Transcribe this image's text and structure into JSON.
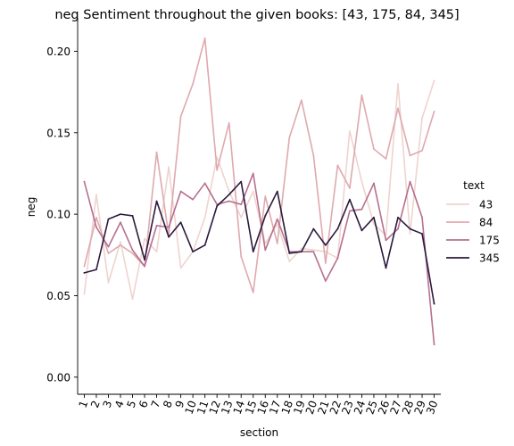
{
  "chart_data": {
    "type": "line",
    "title": "neg Sentiment throughout the given books: [43, 175, 84, 345]",
    "xlabel": "section",
    "ylabel": "neg",
    "x": [
      1,
      2,
      3,
      4,
      5,
      6,
      7,
      8,
      9,
      10,
      11,
      12,
      13,
      14,
      15,
      16,
      17,
      18,
      19,
      20,
      21,
      22,
      23,
      24,
      25,
      26,
      27,
      28,
      29,
      30
    ],
    "x_tick_labels": [
      "1",
      "2",
      "3",
      "4",
      "5",
      "6",
      "7",
      "8",
      "9",
      "10",
      "11",
      "12",
      "13",
      "14",
      "15",
      "16",
      "17",
      "18",
      "19",
      "20",
      "21",
      "22",
      "23",
      "24",
      "25",
      "26",
      "27",
      "28",
      "29",
      "30"
    ],
    "xlim": [
      0.45,
      30.55
    ],
    "ylim": [
      -0.0105,
      0.2205
    ],
    "y_ticks": [
      0.0,
      0.05,
      0.1,
      0.15,
      0.2
    ],
    "y_tick_labels": [
      "0.00",
      "0.05",
      "0.10",
      "0.15",
      "0.20"
    ],
    "grid": false,
    "legend": {
      "title": "text",
      "placement": "right"
    },
    "series": [
      {
        "name": "43",
        "color": "#eed4cf",
        "values": [
          0.051,
          0.112,
          0.058,
          0.083,
          0.048,
          0.085,
          0.077,
          0.129,
          0.067,
          0.077,
          0.098,
          0.135,
          0.114,
          0.098,
          0.114,
          0.082,
          0.094,
          0.071,
          0.079,
          0.078,
          0.077,
          0.073,
          0.151,
          0.12,
          0.094,
          0.087,
          0.18,
          0.088,
          0.159,
          0.182
        ]
      },
      {
        "name": "84",
        "color": "#dfa9ae",
        "values": [
          0.068,
          0.098,
          0.076,
          0.081,
          0.076,
          0.068,
          0.138,
          0.087,
          0.16,
          0.18,
          0.208,
          0.127,
          0.156,
          0.074,
          0.052,
          0.111,
          0.082,
          0.147,
          0.17,
          0.136,
          0.07,
          0.13,
          0.116,
          0.173,
          0.14,
          0.134,
          0.165,
          0.136,
          0.139,
          0.163
        ]
      },
      {
        "name": "175",
        "color": "#b7708f",
        "values": [
          0.12,
          0.092,
          0.08,
          0.095,
          0.078,
          0.068,
          0.093,
          0.092,
          0.114,
          0.109,
          0.119,
          0.106,
          0.108,
          0.106,
          0.125,
          0.078,
          0.097,
          0.077,
          0.077,
          0.077,
          0.059,
          0.073,
          0.102,
          0.103,
          0.119,
          0.084,
          0.091,
          0.12,
          0.098,
          0.02
        ]
      },
      {
        "name": "345",
        "color": "#2b1a3d",
        "values": [
          0.064,
          0.066,
          0.097,
          0.1,
          0.099,
          0.072,
          0.108,
          0.086,
          0.095,
          0.077,
          0.081,
          0.105,
          0.112,
          0.12,
          0.077,
          0.099,
          0.114,
          0.076,
          0.077,
          0.091,
          0.081,
          0.091,
          0.109,
          0.09,
          0.098,
          0.067,
          0.098,
          0.091,
          0.088,
          0.045
        ]
      }
    ]
  }
}
